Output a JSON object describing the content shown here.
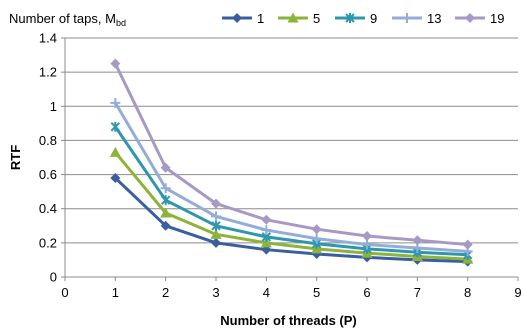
{
  "chart_data": {
    "type": "line",
    "title": "",
    "xlabel": "Number of threads (P)",
    "ylabel": "RTF",
    "xlim": [
      0,
      9
    ],
    "ylim": [
      0,
      1.4
    ],
    "x_ticks": [
      0,
      1,
      2,
      3,
      4,
      5,
      6,
      7,
      8,
      9
    ],
    "y_ticks": [
      0,
      0.2,
      0.4,
      0.6,
      0.8,
      1,
      1.2,
      1.4
    ],
    "x_tick_labels": [
      "0",
      "1",
      "2",
      "3",
      "4",
      "5",
      "6",
      "7",
      "8",
      "9"
    ],
    "y_tick_labels": [
      "0",
      "0.2",
      "0.4",
      "0.6",
      "0.8",
      "1",
      "1.2",
      "1.4"
    ],
    "grid": "horizontal",
    "legend": {
      "title": "Number of taps, M",
      "title_subscript": "bd",
      "placement": "top"
    },
    "x": [
      1,
      2,
      3,
      4,
      5,
      6,
      7,
      8
    ],
    "series": [
      {
        "name": "1",
        "color": "#3A5FA0",
        "marker": "diamond",
        "values": [
          0.58,
          0.3,
          0.2,
          0.16,
          0.135,
          0.115,
          0.1,
          0.09
        ]
      },
      {
        "name": "5",
        "color": "#8DB33A",
        "marker": "triangle",
        "values": [
          0.73,
          0.375,
          0.25,
          0.2,
          0.165,
          0.14,
          0.12,
          0.105
        ]
      },
      {
        "name": "9",
        "color": "#2E97AE",
        "marker": "star",
        "values": [
          0.88,
          0.45,
          0.3,
          0.235,
          0.195,
          0.165,
          0.145,
          0.13
        ]
      },
      {
        "name": "13",
        "color": "#93ADD9",
        "marker": "plus",
        "values": [
          1.02,
          0.52,
          0.355,
          0.275,
          0.225,
          0.19,
          0.17,
          0.15
        ]
      },
      {
        "name": "19",
        "color": "#A898C6",
        "marker": "diamond",
        "values": [
          1.25,
          0.64,
          0.43,
          0.335,
          0.28,
          0.24,
          0.215,
          0.19
        ]
      }
    ]
  }
}
